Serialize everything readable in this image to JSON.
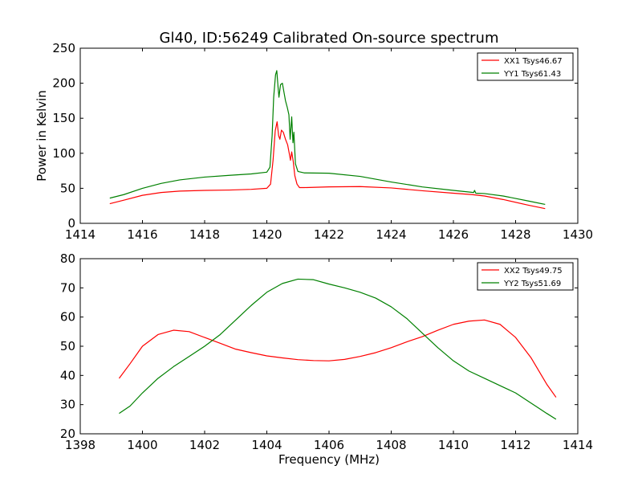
{
  "figure": {
    "title": "Gl40, ID:56249 Calibrated On-source spectrum"
  },
  "chart_data": [
    {
      "type": "line",
      "title": "Gl40, ID:56249 Calibrated On-source spectrum",
      "xlabel": "",
      "ylabel": "Power in Kelvin",
      "xlim": [
        1414,
        1430
      ],
      "ylim": [
        0,
        250
      ],
      "xticks": [
        "1414",
        "1416",
        "1418",
        "1420",
        "1422",
        "1424",
        "1426",
        "1428",
        "1430"
      ],
      "yticks": [
        "0",
        "50",
        "100",
        "150",
        "200",
        "250"
      ],
      "grid": false,
      "legend_position": "top-right",
      "series": [
        {
          "name": "XX1 Tsys46.67",
          "color": "#ff0000",
          "points": [
            [
              1414.95,
              28
            ],
            [
              1415.4,
              33
            ],
            [
              1416.0,
              40
            ],
            [
              1416.6,
              44
            ],
            [
              1417.2,
              46
            ],
            [
              1418.0,
              47
            ],
            [
              1418.8,
              47.5
            ],
            [
              1419.5,
              48.5
            ],
            [
              1420.0,
              50
            ],
            [
              1420.12,
              56
            ],
            [
              1420.2,
              90
            ],
            [
              1420.27,
              132
            ],
            [
              1420.33,
              145
            ],
            [
              1420.38,
              125
            ],
            [
              1420.42,
              120
            ],
            [
              1420.47,
              133
            ],
            [
              1420.53,
              130
            ],
            [
              1420.6,
              120
            ],
            [
              1420.67,
              112
            ],
            [
              1420.72,
              100
            ],
            [
              1420.76,
              90
            ],
            [
              1420.8,
              102
            ],
            [
              1420.85,
              88
            ],
            [
              1420.9,
              68
            ],
            [
              1420.97,
              56
            ],
            [
              1421.05,
              51
            ],
            [
              1421.2,
              51
            ],
            [
              1422.0,
              52
            ],
            [
              1423.0,
              52.5
            ],
            [
              1424.0,
              50.5
            ],
            [
              1425.0,
              46.5
            ],
            [
              1426.0,
              43
            ],
            [
              1426.6,
              41
            ],
            [
              1427.0,
              39
            ],
            [
              1427.6,
              34
            ],
            [
              1428.4,
              26
            ],
            [
              1428.95,
              21
            ]
          ]
        },
        {
          "name": "YY1 Tsys61.43",
          "color": "#008000",
          "points": [
            [
              1414.95,
              36
            ],
            [
              1415.4,
              41
            ],
            [
              1416.0,
              50
            ],
            [
              1416.6,
              57
            ],
            [
              1417.2,
              62
            ],
            [
              1418.0,
              66
            ],
            [
              1418.8,
              68.5
            ],
            [
              1419.5,
              70.5
            ],
            [
              1420.0,
              73
            ],
            [
              1420.1,
              80
            ],
            [
              1420.17,
              125
            ],
            [
              1420.22,
              180
            ],
            [
              1420.28,
              212
            ],
            [
              1420.32,
              218
            ],
            [
              1420.36,
              195
            ],
            [
              1420.39,
              180
            ],
            [
              1420.44,
              198
            ],
            [
              1420.5,
              200
            ],
            [
              1420.56,
              185
            ],
            [
              1420.6,
              175
            ],
            [
              1420.66,
              165
            ],
            [
              1420.71,
              155
            ],
            [
              1420.75,
              120
            ],
            [
              1420.8,
              152
            ],
            [
              1420.84,
              115
            ],
            [
              1420.87,
              130
            ],
            [
              1420.92,
              85
            ],
            [
              1421.0,
              74
            ],
            [
              1421.2,
              72
            ],
            [
              1422.0,
              71.5
            ],
            [
              1423.0,
              67
            ],
            [
              1424.0,
              59
            ],
            [
              1425.0,
              52
            ],
            [
              1426.0,
              47
            ],
            [
              1426.65,
              44
            ],
            [
              1426.68,
              47
            ],
            [
              1426.72,
              43
            ],
            [
              1427.0,
              42.5
            ],
            [
              1427.6,
              39
            ],
            [
              1428.4,
              32
            ],
            [
              1428.95,
              27
            ]
          ]
        }
      ]
    },
    {
      "type": "line",
      "title": "",
      "xlabel": "Frequency (MHz)",
      "ylabel": "",
      "xlim": [
        1398,
        1414
      ],
      "ylim": [
        20,
        80
      ],
      "xticks": [
        "1398",
        "1400",
        "1402",
        "1404",
        "1406",
        "1408",
        "1410",
        "1412",
        "1414"
      ],
      "yticks": [
        "20",
        "30",
        "40",
        "50",
        "60",
        "70",
        "80"
      ],
      "grid": false,
      "legend_position": "top-right",
      "series": [
        {
          "name": "XX2 Tsys49.75",
          "color": "#ff0000",
          "points": [
            [
              1399.25,
              39
            ],
            [
              1399.6,
              44
            ],
            [
              1400.0,
              50
            ],
            [
              1400.5,
              54
            ],
            [
              1401.0,
              55.5
            ],
            [
              1401.5,
              55
            ],
            [
              1402.0,
              53
            ],
            [
              1402.5,
              51
            ],
            [
              1403.0,
              49
            ],
            [
              1403.5,
              47.8
            ],
            [
              1404.0,
              46.7
            ],
            [
              1404.5,
              46
            ],
            [
              1405.0,
              45.4
            ],
            [
              1405.5,
              45.1
            ],
            [
              1406.0,
              45
            ],
            [
              1406.5,
              45.5
            ],
            [
              1407.0,
              46.5
            ],
            [
              1407.5,
              47.8
            ],
            [
              1408.0,
              49.5
            ],
            [
              1408.5,
              51.5
            ],
            [
              1409.0,
              53.3
            ],
            [
              1409.5,
              55.5
            ],
            [
              1410.0,
              57.5
            ],
            [
              1410.5,
              58.6
            ],
            [
              1411.0,
              59
            ],
            [
              1411.5,
              57.5
            ],
            [
              1412.0,
              53
            ],
            [
              1412.5,
              46
            ],
            [
              1413.0,
              37
            ],
            [
              1413.3,
              32.5
            ]
          ]
        },
        {
          "name": "YY2 Tsys51.69",
          "color": "#008000",
          "points": [
            [
              1399.25,
              27
            ],
            [
              1399.6,
              29.5
            ],
            [
              1400.0,
              34
            ],
            [
              1400.5,
              39
            ],
            [
              1401.0,
              43
            ],
            [
              1401.5,
              46.5
            ],
            [
              1402.0,
              50
            ],
            [
              1402.5,
              54
            ],
            [
              1403.0,
              59
            ],
            [
              1403.5,
              64
            ],
            [
              1404.0,
              68.5
            ],
            [
              1404.5,
              71.5
            ],
            [
              1405.0,
              73
            ],
            [
              1405.5,
              72.8
            ],
            [
              1406.0,
              71.3
            ],
            [
              1406.5,
              70
            ],
            [
              1407.0,
              68.5
            ],
            [
              1407.5,
              66.5
            ],
            [
              1408.0,
              63.5
            ],
            [
              1408.5,
              59.5
            ],
            [
              1409.0,
              54.5
            ],
            [
              1409.5,
              49.5
            ],
            [
              1410.0,
              45
            ],
            [
              1410.5,
              41.5
            ],
            [
              1411.0,
              39
            ],
            [
              1411.5,
              36.5
            ],
            [
              1412.0,
              34
            ],
            [
              1412.5,
              30.5
            ],
            [
              1413.0,
              27
            ],
            [
              1413.3,
              25
            ]
          ]
        }
      ]
    }
  ]
}
